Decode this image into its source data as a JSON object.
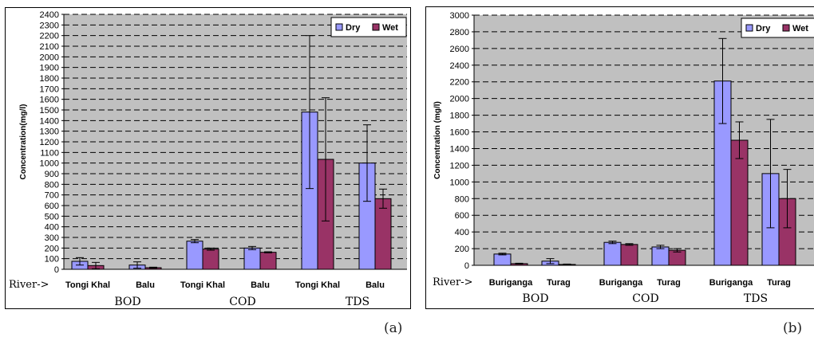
{
  "panel_labels": {
    "a": "(a)",
    "b": "(b)"
  },
  "chart_data": [
    {
      "type": "bar",
      "panel": "a",
      "ylabel": "Concentration(mg/l)",
      "xlabel_prefix": "River->",
      "ylim": [
        0,
        2400
      ],
      "ytick_step": 100,
      "grid": true,
      "legend_position": "top-right",
      "groups": [
        {
          "parameter": "BOD",
          "rivers": [
            "Tongi Khal",
            "Balu"
          ]
        },
        {
          "parameter": "COD",
          "rivers": [
            "Tongi Khal",
            "Balu"
          ]
        },
        {
          "parameter": "TDS",
          "rivers": [
            "Tongi Khal",
            "Balu"
          ]
        }
      ],
      "categories": [
        "Tongi Khal",
        "Balu",
        "Tongi Khal",
        "Balu",
        "Tongi Khal",
        "Balu"
      ],
      "series": [
        {
          "name": "Dry",
          "color": "#9999ff",
          "values": [
            75,
            40,
            265,
            200,
            1480,
            1000
          ],
          "error": [
            35,
            30,
            15,
            15,
            720,
            360
          ]
        },
        {
          "name": "Wet",
          "color": "#993366",
          "values": [
            35,
            15,
            190,
            160,
            1035,
            665
          ],
          "error": [
            30,
            5,
            10,
            5,
            580,
            90
          ]
        }
      ]
    },
    {
      "type": "bar",
      "panel": "b",
      "ylabel": "Concentration (mg/l)",
      "xlabel_prefix": "River->",
      "ylim": [
        0,
        3000
      ],
      "ytick_step": 200,
      "grid": true,
      "legend_position": "top-right",
      "groups": [
        {
          "parameter": "BOD",
          "rivers": [
            "Buriganga",
            "Turag"
          ]
        },
        {
          "parameter": "COD",
          "rivers": [
            "Buriganga",
            "Turag"
          ]
        },
        {
          "parameter": "TDS",
          "rivers": [
            "Buriganga",
            "Turag"
          ]
        }
      ],
      "categories": [
        "Buriganga",
        "Turag",
        "Buriganga",
        "Turag",
        "Buriganga",
        "Turag"
      ],
      "series": [
        {
          "name": "Dry",
          "color": "#9999ff",
          "values": [
            135,
            50,
            275,
            220,
            2210,
            1100
          ],
          "error": [
            10,
            30,
            15,
            20,
            510,
            650
          ]
        },
        {
          "name": "Wet",
          "color": "#993366",
          "values": [
            20,
            10,
            250,
            180,
            1500,
            800
          ],
          "error": [
            5,
            5,
            10,
            20,
            220,
            350
          ]
        }
      ]
    }
  ]
}
